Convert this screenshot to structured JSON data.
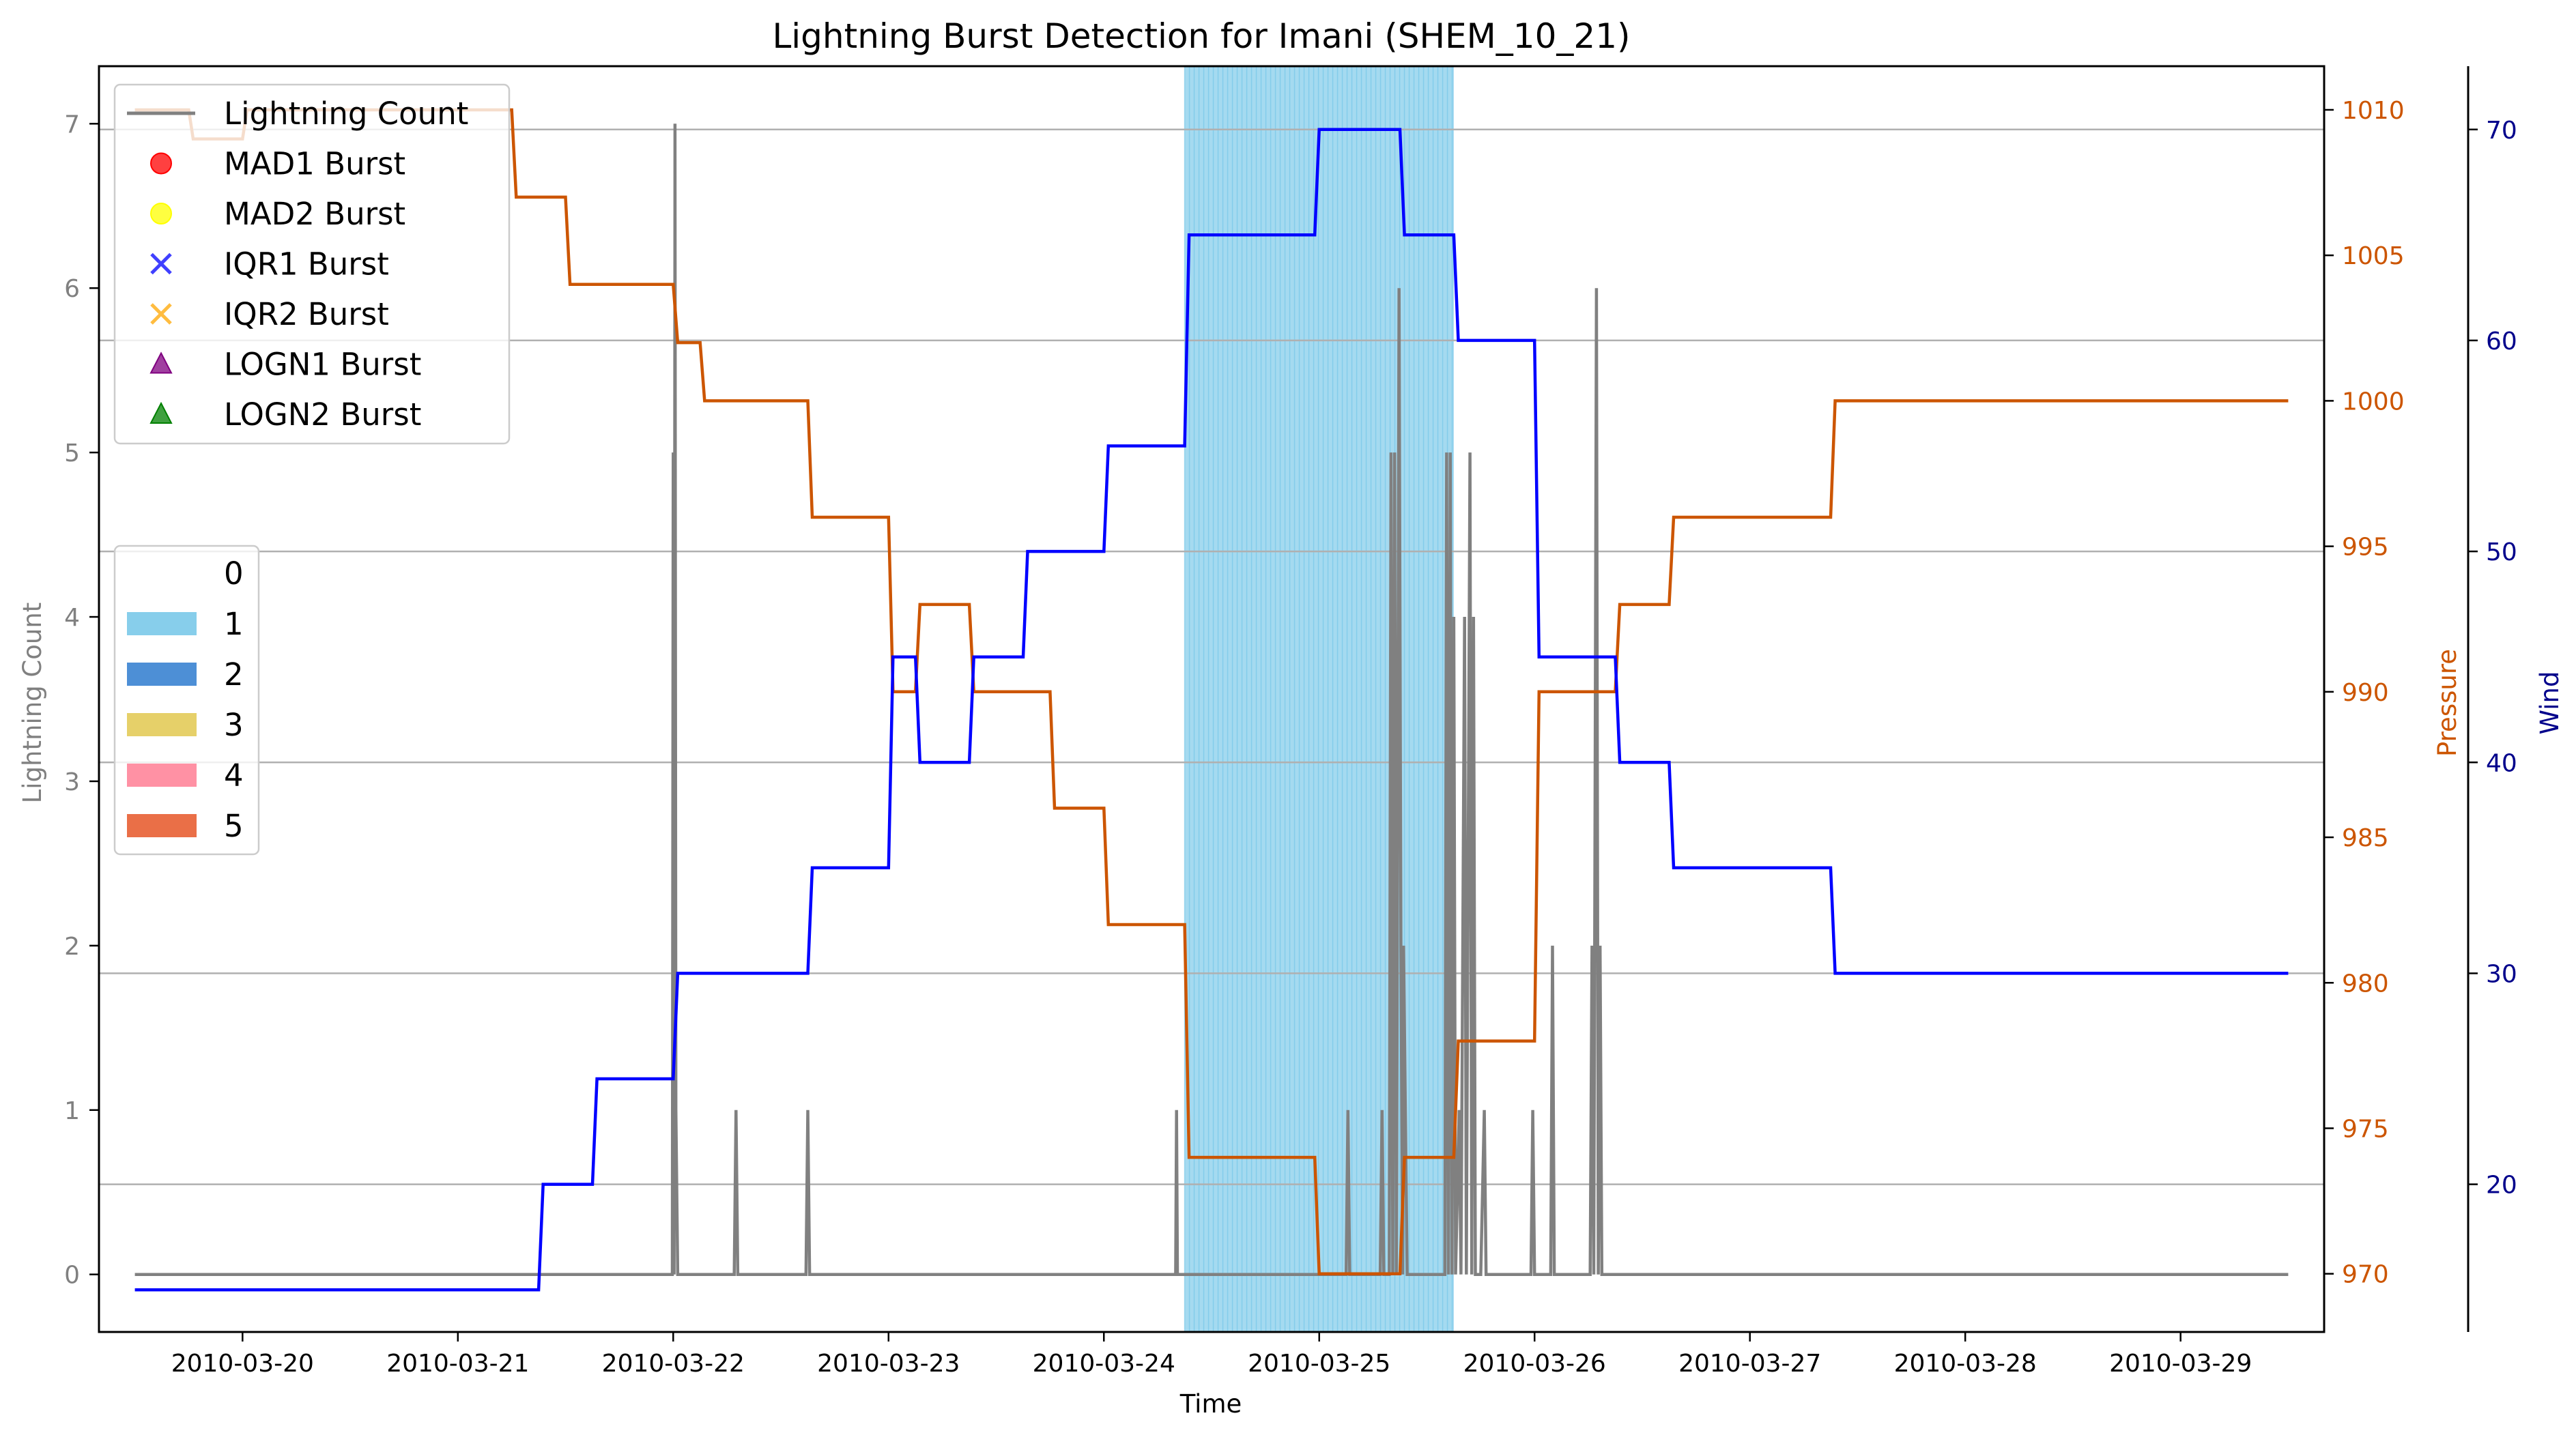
{
  "chart_data": {
    "type": "line",
    "title": "Lightning Burst Detection for Imani (SHEM_10_21)",
    "xlabel": "Time",
    "x_ticks": [
      "2010-03-20",
      "2010-03-21",
      "2010-03-22",
      "2010-03-23",
      "2010-03-24",
      "2010-03-25",
      "2010-03-26",
      "2010-03-27",
      "2010-03-28",
      "2010-03-29"
    ],
    "axes": {
      "lightning": {
        "label": "Lightning Count",
        "range": [
          -0.35,
          7.35
        ],
        "ticks": [
          0,
          1,
          2,
          3,
          4,
          5,
          6,
          7
        ],
        "color": "#808080"
      },
      "pressure": {
        "label": "Pressure",
        "range": [
          968,
          1011.5
        ],
        "ticks": [
          970,
          975,
          980,
          985,
          990,
          995,
          1000,
          1005,
          1010
        ],
        "color": "#cc5500"
      },
      "wind": {
        "label": "Wind",
        "range": [
          13,
          73
        ],
        "ticks": [
          20,
          30,
          40,
          50,
          60,
          70
        ],
        "color": "#00008b"
      }
    },
    "x_range_days": [
      "2010-03-19 08:00",
      "2010-03-29 16:00"
    ],
    "highlight_span": {
      "start": "2010-03-24 09:00",
      "end": "2010-03-25 15:00",
      "category": "1",
      "color": "#87ceeb"
    },
    "series": [
      {
        "name": "Lightning Count",
        "axis": "lightning",
        "color": "#808080",
        "points": [
          [
            "2010-03-19 12:00",
            0
          ],
          [
            "2010-03-21 23:54",
            0
          ],
          [
            "2010-03-22 00:00",
            5
          ],
          [
            "2010-03-22 00:06",
            0
          ],
          [
            "2010-03-22 00:12",
            7
          ],
          [
            "2010-03-22 00:18",
            1
          ],
          [
            "2010-03-22 00:30",
            0
          ],
          [
            "2010-03-22 06:48",
            0
          ],
          [
            "2010-03-22 07:00",
            1
          ],
          [
            "2010-03-22 07:12",
            0
          ],
          [
            "2010-03-22 14:48",
            0
          ],
          [
            "2010-03-22 15:00",
            1
          ],
          [
            "2010-03-22 15:12",
            0
          ],
          [
            "2010-03-24 08:00",
            0
          ],
          [
            "2010-03-24 08:06",
            1
          ],
          [
            "2010-03-24 08:12",
            0
          ],
          [
            "2010-03-25 03:00",
            0
          ],
          [
            "2010-03-25 03:12",
            1
          ],
          [
            "2010-03-25 03:24",
            0
          ],
          [
            "2010-03-25 06:48",
            0
          ],
          [
            "2010-03-25 07:00",
            1
          ],
          [
            "2010-03-25 07:12",
            0
          ],
          [
            "2010-03-25 07:48",
            0
          ],
          [
            "2010-03-25 08:00",
            5
          ],
          [
            "2010-03-25 08:12",
            0
          ],
          [
            "2010-03-25 08:24",
            5
          ],
          [
            "2010-03-25 08:36",
            0
          ],
          [
            "2010-03-25 08:54",
            6
          ],
          [
            "2010-03-25 09:06",
            2
          ],
          [
            "2010-03-25 09:18",
            0
          ],
          [
            "2010-03-25 09:24",
            2
          ],
          [
            "2010-03-25 09:36",
            1
          ],
          [
            "2010-03-25 09:48",
            0
          ],
          [
            "2010-03-25 14:00",
            0
          ],
          [
            "2010-03-25 14:12",
            5
          ],
          [
            "2010-03-25 14:24",
            0
          ],
          [
            "2010-03-25 14:36",
            5
          ],
          [
            "2010-03-25 14:48",
            0
          ],
          [
            "2010-03-25 15:00",
            4
          ],
          [
            "2010-03-25 15:12",
            0
          ],
          [
            "2010-03-25 15:36",
            1
          ],
          [
            "2010-03-25 15:48",
            0
          ],
          [
            "2010-03-25 16:12",
            4
          ],
          [
            "2010-03-25 16:24",
            0
          ],
          [
            "2010-03-25 16:48",
            5
          ],
          [
            "2010-03-25 17:00",
            0
          ],
          [
            "2010-03-25 17:12",
            4
          ],
          [
            "2010-03-25 17:24",
            0
          ],
          [
            "2010-03-25 18:00",
            0
          ],
          [
            "2010-03-25 18:24",
            1
          ],
          [
            "2010-03-25 18:36",
            0
          ],
          [
            "2010-03-25 23:36",
            0
          ],
          [
            "2010-03-25 23:48",
            1
          ],
          [
            "2010-03-26 00:00",
            0
          ],
          [
            "2010-03-26 01:48",
            0
          ],
          [
            "2010-03-26 02:00",
            2
          ],
          [
            "2010-03-26 02:12",
            0
          ],
          [
            "2010-03-26 06:12",
            0
          ],
          [
            "2010-03-26 06:24",
            2
          ],
          [
            "2010-03-26 06:36",
            0
          ],
          [
            "2010-03-26 06:54",
            6
          ],
          [
            "2010-03-26 07:06",
            0
          ],
          [
            "2010-03-26 07:18",
            2
          ],
          [
            "2010-03-26 07:30",
            0
          ],
          [
            "2010-03-29 12:00",
            0
          ]
        ]
      },
      {
        "name": "Pressure",
        "axis": "pressure",
        "color": "#cc5500",
        "points": [
          [
            "2010-03-19 12:00",
            1010
          ],
          [
            "2010-03-19 18:00",
            1010
          ],
          [
            "2010-03-19 18:30",
            1009
          ],
          [
            "2010-03-20 00:00",
            1009
          ],
          [
            "2010-03-20 00:30",
            1010
          ],
          [
            "2010-03-21 06:00",
            1010
          ],
          [
            "2010-03-21 06:30",
            1007
          ],
          [
            "2010-03-21 12:00",
            1007
          ],
          [
            "2010-03-21 12:30",
            1004
          ],
          [
            "2010-03-22 00:00",
            1004
          ],
          [
            "2010-03-22 00:30",
            1002
          ],
          [
            "2010-03-22 03:00",
            1002
          ],
          [
            "2010-03-22 03:30",
            1000
          ],
          [
            "2010-03-22 15:00",
            1000
          ],
          [
            "2010-03-22 15:30",
            996
          ],
          [
            "2010-03-23 00:00",
            996
          ],
          [
            "2010-03-23 00:30",
            990
          ],
          [
            "2010-03-23 03:00",
            990
          ],
          [
            "2010-03-23 03:30",
            993
          ],
          [
            "2010-03-23 09:00",
            993
          ],
          [
            "2010-03-23 09:30",
            990
          ],
          [
            "2010-03-23 18:00",
            990
          ],
          [
            "2010-03-23 18:30",
            986
          ],
          [
            "2010-03-24 00:00",
            986
          ],
          [
            "2010-03-24 00:30",
            982
          ],
          [
            "2010-03-24 09:00",
            982
          ],
          [
            "2010-03-24 09:30",
            974
          ],
          [
            "2010-03-24 23:30",
            974
          ],
          [
            "2010-03-25 00:00",
            970
          ],
          [
            "2010-03-25 09:00",
            970
          ],
          [
            "2010-03-25 09:30",
            974
          ],
          [
            "2010-03-25 15:00",
            974
          ],
          [
            "2010-03-25 15:30",
            978
          ],
          [
            "2010-03-26 00:00",
            978
          ],
          [
            "2010-03-26 00:30",
            990
          ],
          [
            "2010-03-26 09:00",
            990
          ],
          [
            "2010-03-26 09:30",
            993
          ],
          [
            "2010-03-26 15:00",
            993
          ],
          [
            "2010-03-26 15:30",
            996
          ],
          [
            "2010-03-27 09:00",
            996
          ],
          [
            "2010-03-27 09:30",
            1000
          ],
          [
            "2010-03-29 12:00",
            1000
          ]
        ]
      },
      {
        "name": "Wind",
        "axis": "wind",
        "color": "#0000ff",
        "points": [
          [
            "2010-03-19 12:00",
            15
          ],
          [
            "2010-03-21 09:00",
            15
          ],
          [
            "2010-03-21 09:30",
            20
          ],
          [
            "2010-03-21 15:00",
            20
          ],
          [
            "2010-03-21 15:30",
            25
          ],
          [
            "2010-03-22 00:00",
            25
          ],
          [
            "2010-03-22 00:30",
            30
          ],
          [
            "2010-03-22 15:00",
            30
          ],
          [
            "2010-03-22 15:30",
            35
          ],
          [
            "2010-03-23 00:00",
            35
          ],
          [
            "2010-03-23 00:30",
            45
          ],
          [
            "2010-03-23 03:00",
            45
          ],
          [
            "2010-03-23 03:30",
            40
          ],
          [
            "2010-03-23 09:00",
            40
          ],
          [
            "2010-03-23 09:30",
            45
          ],
          [
            "2010-03-23 15:00",
            45
          ],
          [
            "2010-03-23 15:30",
            50
          ],
          [
            "2010-03-24 00:00",
            50
          ],
          [
            "2010-03-24 00:30",
            55
          ],
          [
            "2010-03-24 09:00",
            55
          ],
          [
            "2010-03-24 09:30",
            65
          ],
          [
            "2010-03-24 23:30",
            65
          ],
          [
            "2010-03-25 00:00",
            70
          ],
          [
            "2010-03-25 09:00",
            70
          ],
          [
            "2010-03-25 09:30",
            65
          ],
          [
            "2010-03-25 15:00",
            65
          ],
          [
            "2010-03-25 15:30",
            60
          ],
          [
            "2010-03-26 00:00",
            60
          ],
          [
            "2010-03-26 00:30",
            45
          ],
          [
            "2010-03-26 09:00",
            45
          ],
          [
            "2010-03-26 09:30",
            40
          ],
          [
            "2010-03-26 15:00",
            40
          ],
          [
            "2010-03-26 15:30",
            35
          ],
          [
            "2010-03-27 09:00",
            35
          ],
          [
            "2010-03-27 09:30",
            30
          ],
          [
            "2010-03-29 12:00",
            30
          ]
        ]
      }
    ],
    "legend_markers": {
      "placement": "upper-left",
      "entries": [
        {
          "label": "Lightning Count",
          "symbol": "line",
          "color": "#808080"
        },
        {
          "label": "MAD1 Burst",
          "symbol": "circle",
          "color": "#ff0000"
        },
        {
          "label": "MAD2 Burst",
          "symbol": "circle",
          "color": "#ffff00"
        },
        {
          "label": "IQR1 Burst",
          "symbol": "x",
          "color": "#0000ff"
        },
        {
          "label": "IQR2 Burst",
          "symbol": "x",
          "color": "#ffa500"
        },
        {
          "label": "LOGN1 Burst",
          "symbol": "triangle",
          "color": "#800080"
        },
        {
          "label": "LOGN2 Burst",
          "symbol": "triangle",
          "color": "#008000"
        }
      ]
    },
    "legend_categories": {
      "placement": "left-middle",
      "entries": [
        {
          "label": "0",
          "color": "#ffffff"
        },
        {
          "label": "1",
          "color": "#87ceeb"
        },
        {
          "label": "2",
          "color": "#4d8fd6"
        },
        {
          "label": "3",
          "color": "#e6d069"
        },
        {
          "label": "4",
          "color": "#ff91a4"
        },
        {
          "label": "5",
          "color": "#ea6f47"
        }
      ]
    },
    "grid": "horizontal (wind axis)"
  }
}
